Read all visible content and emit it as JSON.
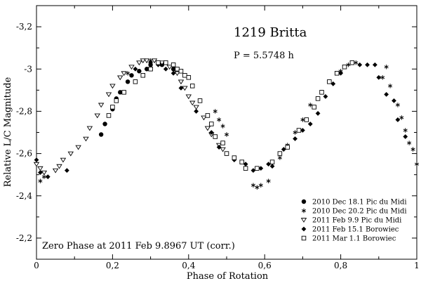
{
  "chart_data": {
    "type": "scatter",
    "title": "1219 Britta",
    "annotations": {
      "period": "P = 5.5748 h",
      "zero_phase": "Zero Phase at 2011 Feb 9.8967 UT (corr.)"
    },
    "xlabel": "Phase of Rotation",
    "ylabel": "Relative L/C Magnitude",
    "xlim": [
      0,
      1
    ],
    "ylim": [
      -2.1,
      -3.3
    ],
    "x_ticks": [
      0,
      0.2,
      0.4,
      0.6,
      0.8,
      1
    ],
    "x_tick_labels": [
      "0",
      "0,2",
      "0,4",
      "0,6",
      "0,8",
      "1"
    ],
    "y_ticks": [
      -3.2,
      -3.0,
      -2.8,
      -2.6,
      -2.4,
      -2.2
    ],
    "y_tick_labels": [
      "-3,2",
      "-3",
      "-2,8",
      "-2,6",
      "-2,4",
      "-2,2"
    ],
    "grid": false,
    "legend_position": "bottom-right",
    "series": [
      {
        "name": "2010 Dec 18.1 Pic du Midi",
        "marker": "filled-circle",
        "points": [
          [
            0.17,
            2.69
          ],
          [
            0.18,
            2.74
          ],
          [
            0.2,
            2.81
          ],
          [
            0.21,
            2.86
          ],
          [
            0.22,
            2.89
          ],
          [
            0.24,
            2.94
          ],
          [
            0.25,
            2.97
          ],
          [
            0.27,
            2.99
          ],
          [
            0.29,
            3.0
          ],
          [
            0.3,
            3.02
          ],
          [
            0.33,
            3.02
          ],
          [
            0.36,
            3.0
          ]
        ]
      },
      {
        "name": "2010 Dec 20.2 Pic du Midi",
        "marker": "asterisk",
        "points": [
          [
            0.01,
            2.47
          ],
          [
            0.02,
            2.49
          ],
          [
            0.24,
            2.98
          ],
          [
            0.3,
            3.04
          ],
          [
            0.47,
            2.8
          ],
          [
            0.48,
            2.76
          ],
          [
            0.49,
            2.73
          ],
          [
            0.5,
            2.69
          ],
          [
            0.57,
            2.45
          ],
          [
            0.58,
            2.44
          ],
          [
            0.59,
            2.45
          ],
          [
            0.61,
            2.47
          ],
          [
            0.64,
            2.58
          ],
          [
            0.66,
            2.64
          ],
          [
            0.68,
            2.7
          ],
          [
            0.7,
            2.76
          ],
          [
            0.72,
            2.83
          ],
          [
            0.75,
            2.89
          ],
          [
            0.77,
            2.94
          ],
          [
            0.8,
            2.99
          ],
          [
            0.82,
            3.02
          ],
          [
            0.84,
            3.03
          ],
          [
            0.91,
            2.96
          ],
          [
            0.92,
            3.01
          ],
          [
            0.93,
            2.92
          ],
          [
            0.95,
            2.83
          ],
          [
            0.96,
            2.77
          ],
          [
            0.97,
            2.71
          ],
          [
            0.98,
            2.65
          ],
          [
            0.99,
            2.62
          ],
          [
            1.0,
            2.55
          ]
        ]
      },
      {
        "name": "2011 Feb 9.9 Pic du Midi",
        "marker": "open-triangle-down",
        "points": [
          [
            0.0,
            2.55
          ],
          [
            0.01,
            2.53
          ],
          [
            0.02,
            2.51
          ],
          [
            0.05,
            2.52
          ],
          [
            0.06,
            2.54
          ],
          [
            0.07,
            2.57
          ],
          [
            0.09,
            2.6
          ],
          [
            0.11,
            2.63
          ],
          [
            0.13,
            2.67
          ],
          [
            0.14,
            2.72
          ],
          [
            0.16,
            2.78
          ],
          [
            0.17,
            2.83
          ],
          [
            0.19,
            2.88
          ],
          [
            0.2,
            2.92
          ],
          [
            0.22,
            2.96
          ],
          [
            0.23,
            2.98
          ],
          [
            0.25,
            3.01
          ],
          [
            0.27,
            3.03
          ],
          [
            0.28,
            3.04
          ],
          [
            0.29,
            3.04
          ],
          [
            0.31,
            3.04
          ],
          [
            0.33,
            3.03
          ],
          [
            0.35,
            3.01
          ],
          [
            0.37,
            2.98
          ],
          [
            0.38,
            2.94
          ],
          [
            0.39,
            2.91
          ],
          [
            0.4,
            2.87
          ],
          [
            0.41,
            2.84
          ],
          [
            0.42,
            2.82
          ],
          [
            0.44,
            2.77
          ],
          [
            0.45,
            2.72
          ],
          [
            0.46,
            2.69
          ],
          [
            0.48,
            2.64
          ],
          [
            0.49,
            2.62
          ]
        ]
      },
      {
        "name": "2011 Feb 15.1 Borowiec",
        "marker": "filled-diamond",
        "points": [
          [
            0.0,
            2.57
          ],
          [
            0.01,
            2.51
          ],
          [
            0.03,
            2.49
          ],
          [
            0.08,
            2.52
          ],
          [
            0.26,
            3.0
          ],
          [
            0.3,
            3.03
          ],
          [
            0.32,
            3.02
          ],
          [
            0.34,
            3.0
          ],
          [
            0.36,
            2.98
          ],
          [
            0.38,
            2.91
          ],
          [
            0.42,
            2.8
          ],
          [
            0.46,
            2.7
          ],
          [
            0.48,
            2.63
          ],
          [
            0.5,
            2.6
          ],
          [
            0.52,
            2.57
          ],
          [
            0.55,
            2.55
          ],
          [
            0.57,
            2.52
          ],
          [
            0.59,
            2.53
          ],
          [
            0.61,
            2.55
          ],
          [
            0.62,
            2.54
          ],
          [
            0.65,
            2.62
          ],
          [
            0.68,
            2.67
          ],
          [
            0.7,
            2.71
          ],
          [
            0.72,
            2.74
          ],
          [
            0.74,
            2.79
          ],
          [
            0.76,
            2.87
          ],
          [
            0.78,
            2.93
          ],
          [
            0.8,
            2.98
          ],
          [
            0.83,
            3.03
          ],
          [
            0.85,
            3.02
          ],
          [
            0.87,
            3.02
          ],
          [
            0.89,
            3.02
          ],
          [
            0.9,
            2.96
          ],
          [
            0.92,
            2.88
          ],
          [
            0.94,
            2.85
          ],
          [
            0.95,
            2.76
          ],
          [
            0.97,
            2.68
          ]
        ]
      },
      {
        "name": "2011 Mar 1.1 Borowiec",
        "marker": "open-square",
        "points": [
          [
            0.19,
            2.78
          ],
          [
            0.2,
            2.82
          ],
          [
            0.21,
            2.85
          ],
          [
            0.23,
            2.89
          ],
          [
            0.26,
            2.94
          ],
          [
            0.28,
            2.97
          ],
          [
            0.3,
            3.0
          ],
          [
            0.32,
            3.03
          ],
          [
            0.34,
            3.03
          ],
          [
            0.36,
            3.02
          ],
          [
            0.37,
            3.0
          ],
          [
            0.38,
            2.99
          ],
          [
            0.39,
            2.97
          ],
          [
            0.4,
            2.96
          ],
          [
            0.41,
            2.92
          ],
          [
            0.43,
            2.85
          ],
          [
            0.45,
            2.78
          ],
          [
            0.46,
            2.74
          ],
          [
            0.47,
            2.68
          ],
          [
            0.49,
            2.65
          ],
          [
            0.5,
            2.6
          ],
          [
            0.52,
            2.58
          ],
          [
            0.54,
            2.56
          ],
          [
            0.55,
            2.53
          ],
          [
            0.58,
            2.53
          ],
          [
            0.62,
            2.56
          ],
          [
            0.64,
            2.6
          ],
          [
            0.66,
            2.63
          ],
          [
            0.69,
            2.71
          ],
          [
            0.71,
            2.76
          ],
          [
            0.73,
            2.82
          ],
          [
            0.74,
            2.86
          ],
          [
            0.75,
            2.89
          ],
          [
            0.77,
            2.94
          ],
          [
            0.79,
            2.98
          ],
          [
            0.81,
            3.01
          ],
          [
            0.83,
            3.03
          ]
        ]
      }
    ]
  }
}
